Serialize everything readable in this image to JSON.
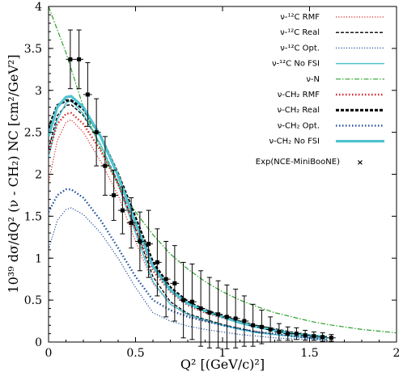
{
  "chart_data": {
    "type": "line",
    "title": "",
    "xlabel": "Q² [(GeV/c)²]",
    "ylabel": "10³⁹ dσ/dQ² (ν - CH₂) NC [cm²/GeV²]",
    "xlim": [
      0,
      2
    ],
    "ylim": [
      0,
      4
    ],
    "x_ticks": [
      "0",
      "0.5",
      "1",
      "1.5",
      "2"
    ],
    "y_ticks": [
      "0",
      "0.5",
      "1",
      "1.5",
      "2",
      "2.5",
      "3",
      "3.5",
      "4"
    ],
    "grid": false,
    "legend_position": "top-right",
    "series": [
      {
        "name": "ν-¹²C RMF",
        "color": "#d62728",
        "style": "dotted",
        "x": [
          0,
          0.05,
          0.1,
          0.13,
          0.2,
          0.3,
          0.4,
          0.5,
          0.6,
          0.7,
          0.8,
          0.9,
          1.0,
          1.1,
          1.2,
          1.3,
          1.4,
          1.5,
          1.6
        ],
        "y": [
          1.9,
          2.4,
          2.62,
          2.65,
          2.5,
          2.15,
          1.75,
          1.2,
          0.7,
          0.45,
          0.32,
          0.25,
          0.2,
          0.15,
          0.12,
          0.09,
          0.07,
          0.05,
          0.03
        ]
      },
      {
        "name": "ν-¹²C Real",
        "color": "#000000",
        "style": "dashed",
        "x": [
          0,
          0.05,
          0.1,
          0.13,
          0.2,
          0.3,
          0.4,
          0.5,
          0.6,
          0.7,
          0.8,
          0.9,
          1.0,
          1.1,
          1.2,
          1.3,
          1.4,
          1.5,
          1.6
        ],
        "y": [
          2.3,
          2.7,
          2.82,
          2.83,
          2.7,
          2.35,
          1.9,
          1.35,
          0.78,
          0.48,
          0.34,
          0.27,
          0.21,
          0.16,
          0.12,
          0.09,
          0.07,
          0.05,
          0.03
        ]
      },
      {
        "name": "ν-¹²C Opt.",
        "color": "#1f4e9c",
        "style": "dotted",
        "x": [
          0,
          0.05,
          0.1,
          0.13,
          0.2,
          0.3,
          0.4,
          0.5,
          0.6,
          0.7,
          0.8,
          0.9,
          1.0,
          1.1,
          1.2,
          1.3,
          1.4,
          1.5,
          1.6
        ],
        "y": [
          1.1,
          1.45,
          1.58,
          1.6,
          1.52,
          1.3,
          1.0,
          0.65,
          0.35,
          0.25,
          0.19,
          0.15,
          0.12,
          0.09,
          0.07,
          0.05,
          0.04,
          0.03,
          0.02
        ]
      },
      {
        "name": "ν-¹²C No FSI",
        "color": "#4fc3d1",
        "style": "solid",
        "x": [
          0,
          0.05,
          0.1,
          0.13,
          0.2,
          0.3,
          0.4,
          0.5,
          0.6,
          0.7,
          0.8,
          0.9,
          1.0,
          1.1,
          1.2,
          1.3,
          1.4,
          1.5,
          1.6
        ],
        "y": [
          2.2,
          2.65,
          2.85,
          2.88,
          2.72,
          2.35,
          1.88,
          1.3,
          0.72,
          0.45,
          0.33,
          0.26,
          0.2,
          0.15,
          0.11,
          0.09,
          0.07,
          0.05,
          0.03
        ]
      },
      {
        "name": "ν-N",
        "color": "#2ca02c",
        "style": "dashdot",
        "x": [
          0,
          0.1,
          0.2,
          0.3,
          0.4,
          0.5,
          0.6,
          0.7,
          0.8,
          0.9,
          1.0,
          1.1,
          1.2,
          1.3,
          1.4,
          1.5,
          1.6,
          1.7,
          1.8,
          1.9,
          2.0
        ],
        "y": [
          4.0,
          3.45,
          2.8,
          2.3,
          1.88,
          1.55,
          1.28,
          1.05,
          0.87,
          0.72,
          0.6,
          0.5,
          0.42,
          0.35,
          0.3,
          0.25,
          0.21,
          0.18,
          0.15,
          0.13,
          0.11
        ]
      },
      {
        "name": "ν-CH₂ RMF",
        "color": "#d62728",
        "style": "dotted-thick",
        "x": [
          0,
          0.05,
          0.1,
          0.13,
          0.2,
          0.3,
          0.4,
          0.5,
          0.6,
          0.7,
          0.8,
          0.9,
          1.0,
          1.1,
          1.2,
          1.3,
          1.4,
          1.5,
          1.6
        ],
        "y": [
          2.25,
          2.6,
          2.72,
          2.73,
          2.6,
          2.28,
          1.88,
          1.35,
          0.85,
          0.6,
          0.44,
          0.35,
          0.29,
          0.23,
          0.18,
          0.14,
          0.11,
          0.08,
          0.06
        ]
      },
      {
        "name": "ν-CH₂ Real",
        "color": "#000000",
        "style": "dashed-thick",
        "x": [
          0,
          0.05,
          0.1,
          0.13,
          0.2,
          0.3,
          0.4,
          0.5,
          0.6,
          0.7,
          0.8,
          0.9,
          1.0,
          1.1,
          1.2,
          1.3,
          1.4,
          1.5,
          1.6
        ],
        "y": [
          2.55,
          2.82,
          2.88,
          2.88,
          2.78,
          2.45,
          2.0,
          1.48,
          0.95,
          0.65,
          0.48,
          0.38,
          0.31,
          0.24,
          0.19,
          0.15,
          0.11,
          0.08,
          0.06
        ]
      },
      {
        "name": "ν-CH₂ Opt.",
        "color": "#1f4e9c",
        "style": "dotted-thick",
        "x": [
          0,
          0.05,
          0.1,
          0.13,
          0.2,
          0.3,
          0.4,
          0.5,
          0.6,
          0.7,
          0.8,
          0.9,
          1.0,
          1.1,
          1.2,
          1.3,
          1.4,
          1.5,
          1.6
        ],
        "y": [
          1.55,
          1.75,
          1.82,
          1.82,
          1.72,
          1.45,
          1.12,
          0.78,
          0.5,
          0.38,
          0.3,
          0.25,
          0.2,
          0.16,
          0.12,
          0.1,
          0.07,
          0.05,
          0.04
        ]
      },
      {
        "name": "ν-CH₂ No FSI",
        "color": "#4fc3d1",
        "style": "solid-thick",
        "x": [
          0,
          0.05,
          0.1,
          0.13,
          0.2,
          0.3,
          0.4,
          0.5,
          0.6,
          0.7,
          0.8,
          0.9,
          1.0,
          1.1,
          1.2,
          1.3,
          1.4,
          1.5,
          1.6
        ],
        "y": [
          2.45,
          2.8,
          2.92,
          2.93,
          2.8,
          2.45,
          1.98,
          1.42,
          0.9,
          0.62,
          0.46,
          0.37,
          0.3,
          0.23,
          0.18,
          0.14,
          0.1,
          0.08,
          0.06
        ]
      }
    ],
    "data_points": {
      "name": "Exp(NCE-MiniBooNE)",
      "marker": "×",
      "x": [
        0.125,
        0.175,
        0.225,
        0.275,
        0.325,
        0.375,
        0.425,
        0.475,
        0.525,
        0.575,
        0.625,
        0.675,
        0.725,
        0.775,
        0.825,
        0.875,
        0.925,
        0.975,
        1.025,
        1.075,
        1.125,
        1.175,
        1.225,
        1.275,
        1.325,
        1.375,
        1.425,
        1.475,
        1.525,
        1.575,
        1.625
      ],
      "y": [
        3.37,
        3.37,
        2.95,
        2.5,
        2.1,
        1.75,
        1.57,
        1.42,
        1.2,
        1.17,
        0.95,
        0.75,
        0.7,
        0.5,
        0.48,
        0.4,
        0.35,
        0.33,
        0.3,
        0.28,
        0.25,
        0.2,
        0.18,
        0.15,
        0.12,
        0.1,
        0.1,
        0.08,
        0.07,
        0.06,
        0.05
      ],
      "yerr": [
        0.35,
        0.35,
        0.38,
        0.4,
        0.35,
        0.3,
        0.28,
        0.3,
        0.35,
        0.4,
        0.4,
        0.45,
        0.45,
        0.45,
        0.45,
        0.45,
        0.42,
        0.4,
        0.38,
        0.35,
        0.3,
        0.25,
        0.2,
        0.15,
        0.1,
        0.08,
        0.07,
        0.06,
        0.05,
        0.05,
        0.04
      ],
      "xerr": 0.025,
      "color": "#000000"
    }
  }
}
